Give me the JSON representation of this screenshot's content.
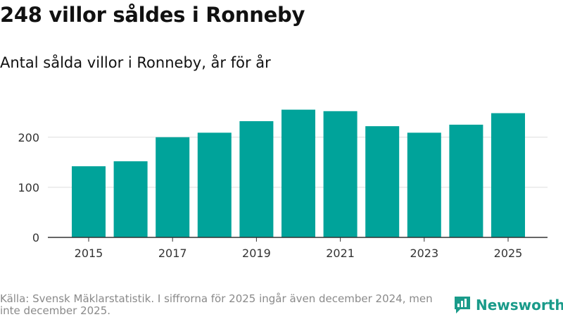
{
  "title": "248 villor såldes i Ronneby",
  "subtitle": "Antal sålda villor i Ronneby, år för år",
  "source": "Källa: Svensk Mäklarstatistik. I siffrorna för 2025 ingår även december 2024, men inte december 2025.",
  "brand": {
    "name": "Newsworthy",
    "icon": "newsworthy-logo-icon"
  },
  "colors": {
    "bar": "#00a39a",
    "grid": "#dddddd",
    "axis": "#333333",
    "text": "#333333",
    "brand": "#1a9b8a"
  },
  "chart_data": {
    "type": "bar",
    "title": "Antal sålda villor i Ronneby, år för år",
    "xlabel": "",
    "ylabel": "",
    "categories": [
      "2015",
      "2016",
      "2017",
      "2018",
      "2019",
      "2020",
      "2021",
      "2022",
      "2023",
      "2024",
      "2025"
    ],
    "values": [
      142,
      152,
      200,
      209,
      232,
      255,
      252,
      222,
      209,
      225,
      248
    ],
    "x_tick_labels": [
      "2015",
      "2017",
      "2019",
      "2021",
      "2023",
      "2025"
    ],
    "y_ticks": [
      0,
      100,
      200
    ],
    "ylim": [
      0,
      270
    ],
    "grid": true,
    "legend": "none"
  }
}
